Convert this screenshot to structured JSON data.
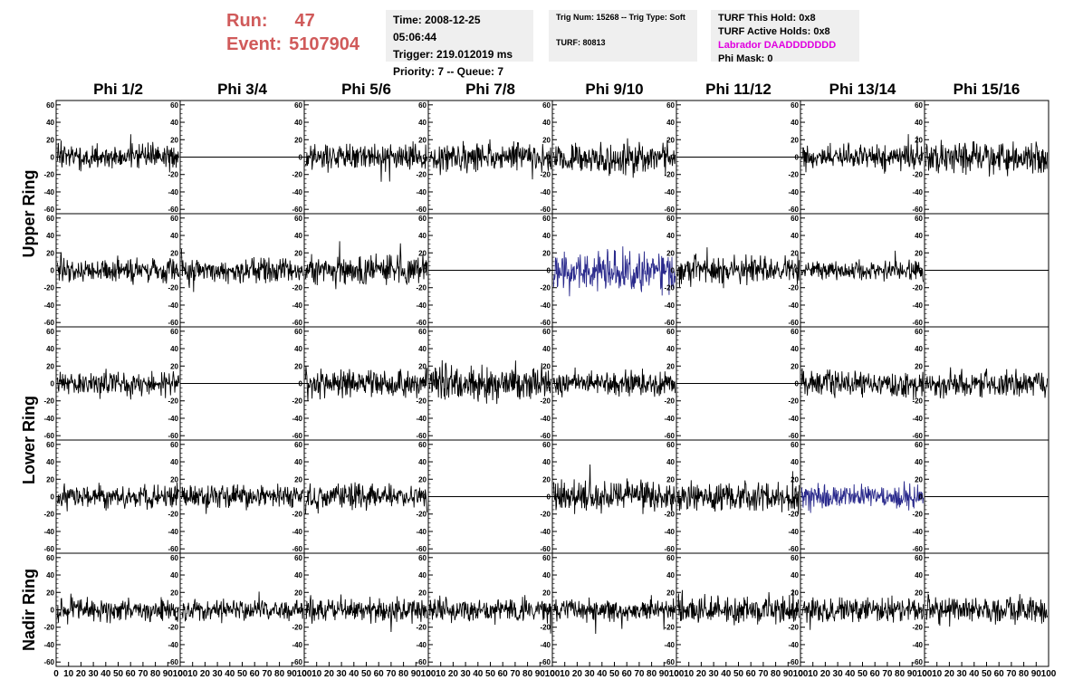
{
  "header": {
    "run_label": "Run:",
    "run_value": "47",
    "event_label": "Event:",
    "event_value": "5107904",
    "time_line": "Time: 2008-12-25 05:06:44",
    "trigger_line": "Trigger: 219.012019 ms",
    "priority_line": "Priority: 7 -- Queue: 7",
    "trig_num_line": "Trig Num: 15268 -- Trig Type: Soft",
    "turf_line": "TURF: 80813",
    "turf_hold_line": "TURF This Hold: 0x8",
    "turf_active_line": "TURF Active Holds: 0x8",
    "labrador_line": "Labrador DAADDDDDDD",
    "phi_mask_line": "Phi Mask: 0",
    "colors": {
      "run_text": "#d05a5a",
      "labrador": "#e000e0",
      "trace": "#000000",
      "highlight_trace": "#2a2a8c",
      "info_bg": "#efefef"
    }
  },
  "chart_data": {
    "type": "line",
    "columns": [
      "Phi 1/2",
      "Phi 3/4",
      "Phi 5/6",
      "Phi 7/8",
      "Phi 9/10",
      "Phi 11/12",
      "Phi 13/14",
      "Phi 15/16"
    ],
    "rows": [
      "Upper Ring",
      "Lower Ring",
      "Nadir Ring"
    ],
    "xlim": [
      0,
      100
    ],
    "ylim": [
      -65,
      65
    ],
    "x_ticks": [
      "0",
      "10",
      "20",
      "30",
      "40",
      "50",
      "60",
      "70",
      "80",
      "90",
      "100"
    ],
    "y_ticks": [
      "-60",
      "-40",
      "-20",
      "0",
      "20",
      "40",
      "60"
    ],
    "panels": [
      {
        "row": 0,
        "col": 0,
        "seed": 11,
        "amp": 16,
        "flat": false,
        "blue": false
      },
      {
        "row": 0,
        "col": 1,
        "seed": 0,
        "amp": 0,
        "flat": true,
        "blue": false
      },
      {
        "row": 0,
        "col": 2,
        "seed": 13,
        "amp": 17,
        "flat": false,
        "blue": false
      },
      {
        "row": 0,
        "col": 3,
        "seed": 14,
        "amp": 18,
        "flat": false,
        "blue": false
      },
      {
        "row": 0,
        "col": 4,
        "seed": 15,
        "amp": 22,
        "flat": false,
        "blue": false
      },
      {
        "row": 0,
        "col": 5,
        "seed": 0,
        "amp": 0,
        "flat": true,
        "blue": false
      },
      {
        "row": 0,
        "col": 6,
        "seed": 17,
        "amp": 16,
        "flat": false,
        "blue": false
      },
      {
        "row": 0,
        "col": 7,
        "seed": 18,
        "amp": 20,
        "flat": false,
        "blue": false
      },
      {
        "row": 1,
        "col": 0,
        "seed": 21,
        "amp": 17,
        "flat": false,
        "blue": false
      },
      {
        "row": 1,
        "col": 1,
        "seed": 22,
        "amp": 16,
        "flat": false,
        "blue": false
      },
      {
        "row": 1,
        "col": 2,
        "seed": 23,
        "amp": 18,
        "flat": false,
        "blue": false
      },
      {
        "row": 1,
        "col": 3,
        "seed": 0,
        "amp": 0,
        "flat": true,
        "blue": false
      },
      {
        "row": 1,
        "col": 4,
        "seed": 25,
        "amp": 26,
        "flat": false,
        "blue": true
      },
      {
        "row": 1,
        "col": 5,
        "seed": 26,
        "amp": 18,
        "flat": false,
        "blue": false
      },
      {
        "row": 1,
        "col": 6,
        "seed": 27,
        "amp": 13,
        "flat": false,
        "blue": false
      },
      {
        "row": 1,
        "col": 7,
        "seed": 0,
        "amp": 0,
        "flat": true,
        "blue": false
      },
      {
        "row": 2,
        "col": 0,
        "seed": 31,
        "amp": 16,
        "flat": false,
        "blue": false
      },
      {
        "row": 2,
        "col": 1,
        "seed": 0,
        "amp": 0,
        "flat": true,
        "blue": false
      },
      {
        "row": 2,
        "col": 2,
        "seed": 33,
        "amp": 18,
        "flat": false,
        "blue": false
      },
      {
        "row": 2,
        "col": 3,
        "seed": 34,
        "amp": 22,
        "flat": false,
        "blue": false
      },
      {
        "row": 2,
        "col": 4,
        "seed": 35,
        "amp": 17,
        "flat": false,
        "blue": false
      },
      {
        "row": 2,
        "col": 5,
        "seed": 0,
        "amp": 0,
        "flat": true,
        "blue": false
      },
      {
        "row": 2,
        "col": 6,
        "seed": 37,
        "amp": 17,
        "flat": false,
        "blue": false
      },
      {
        "row": 2,
        "col": 7,
        "seed": 38,
        "amp": 16,
        "flat": false,
        "blue": false
      },
      {
        "row": 3,
        "col": 0,
        "seed": 41,
        "amp": 15,
        "flat": false,
        "blue": false
      },
      {
        "row": 3,
        "col": 1,
        "seed": 42,
        "amp": 15,
        "flat": false,
        "blue": false
      },
      {
        "row": 3,
        "col": 2,
        "seed": 43,
        "amp": 16,
        "flat": false,
        "blue": false
      },
      {
        "row": 3,
        "col": 3,
        "seed": 0,
        "amp": 0,
        "flat": true,
        "blue": false
      },
      {
        "row": 3,
        "col": 4,
        "seed": 45,
        "amp": 20,
        "flat": false,
        "blue": false
      },
      {
        "row": 3,
        "col": 5,
        "seed": 46,
        "amp": 18,
        "flat": false,
        "blue": false
      },
      {
        "row": 3,
        "col": 6,
        "seed": 47,
        "amp": 16,
        "flat": false,
        "blue": true
      },
      {
        "row": 3,
        "col": 7,
        "seed": 0,
        "amp": 0,
        "flat": true,
        "blue": false
      },
      {
        "row": 4,
        "col": 0,
        "seed": 51,
        "amp": 15,
        "flat": false,
        "blue": false
      },
      {
        "row": 4,
        "col": 1,
        "seed": 52,
        "amp": 13,
        "flat": false,
        "blue": false
      },
      {
        "row": 4,
        "col": 2,
        "seed": 53,
        "amp": 15,
        "flat": false,
        "blue": false
      },
      {
        "row": 4,
        "col": 3,
        "seed": 54,
        "amp": 15,
        "flat": false,
        "blue": false
      },
      {
        "row": 4,
        "col": 4,
        "seed": 55,
        "amp": 15,
        "flat": false,
        "blue": false
      },
      {
        "row": 4,
        "col": 5,
        "seed": 56,
        "amp": 18,
        "flat": false,
        "blue": false
      },
      {
        "row": 4,
        "col": 6,
        "seed": 57,
        "amp": 16,
        "flat": false,
        "blue": false
      },
      {
        "row": 4,
        "col": 7,
        "seed": 58,
        "amp": 16,
        "flat": false,
        "blue": false
      }
    ]
  }
}
